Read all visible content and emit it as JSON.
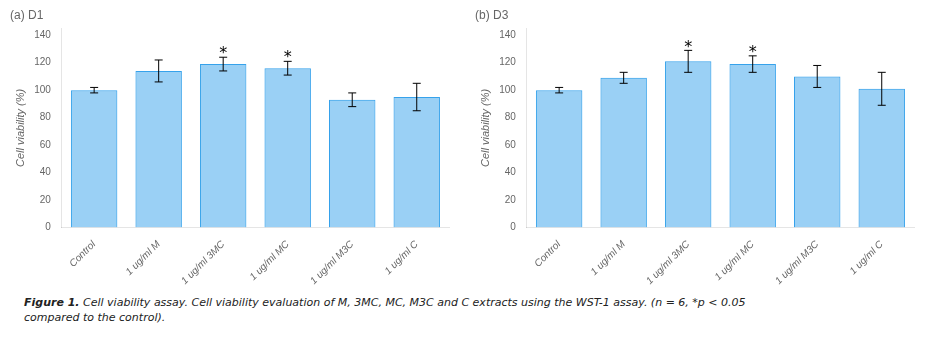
{
  "chart_data": [
    {
      "type": "bar",
      "title": "(a) D1",
      "categories": [
        "Control",
        "1 ug/ml M",
        "1 ug/ml 3MC",
        "1 ug/ml MC",
        "1 ug/ml M3C",
        "1 ug/ml C"
      ],
      "values": [
        100,
        114,
        119,
        116,
        93,
        95
      ],
      "errors": [
        2,
        8,
        5,
        5,
        5,
        10
      ],
      "annotations": [
        {
          "category": "1 ug/ml 3MC",
          "text": "*"
        },
        {
          "category": "1 ug/ml MC",
          "text": "*"
        }
      ],
      "y_label": "Cell viability (%)",
      "ylim": [
        0,
        145
      ],
      "yticks": [
        0,
        20,
        40,
        60,
        80,
        100,
        120,
        140
      ],
      "grid": false
    },
    {
      "type": "bar",
      "title": "(b) D3",
      "categories": [
        "Control",
        "1 ug/ml M",
        "1 ug/ml 3MC",
        "1 ug/ml MC",
        "1 ug/ml M3C",
        "1 ug/ml C"
      ],
      "values": [
        100,
        109,
        121,
        119,
        110,
        101
      ],
      "errors": [
        2,
        4,
        8,
        6,
        8,
        12
      ],
      "annotations": [
        {
          "category": "1 ug/ml 3MC",
          "text": "*"
        },
        {
          "category": "1 ug/ml MC",
          "text": "*"
        }
      ],
      "y_label": "Cell viability (%)",
      "ylim": [
        0,
        145
      ],
      "yticks": [
        0,
        20,
        40,
        60,
        80,
        100,
        120,
        140
      ],
      "grid": false
    }
  ],
  "caption": "Figure 1. Cell viability assay. Cell viability evaluation of M, 3MC, MC, M3C and C extracts using the WST-1 assay. (n = 6, *p < 0.05\ncompared to the control)."
}
